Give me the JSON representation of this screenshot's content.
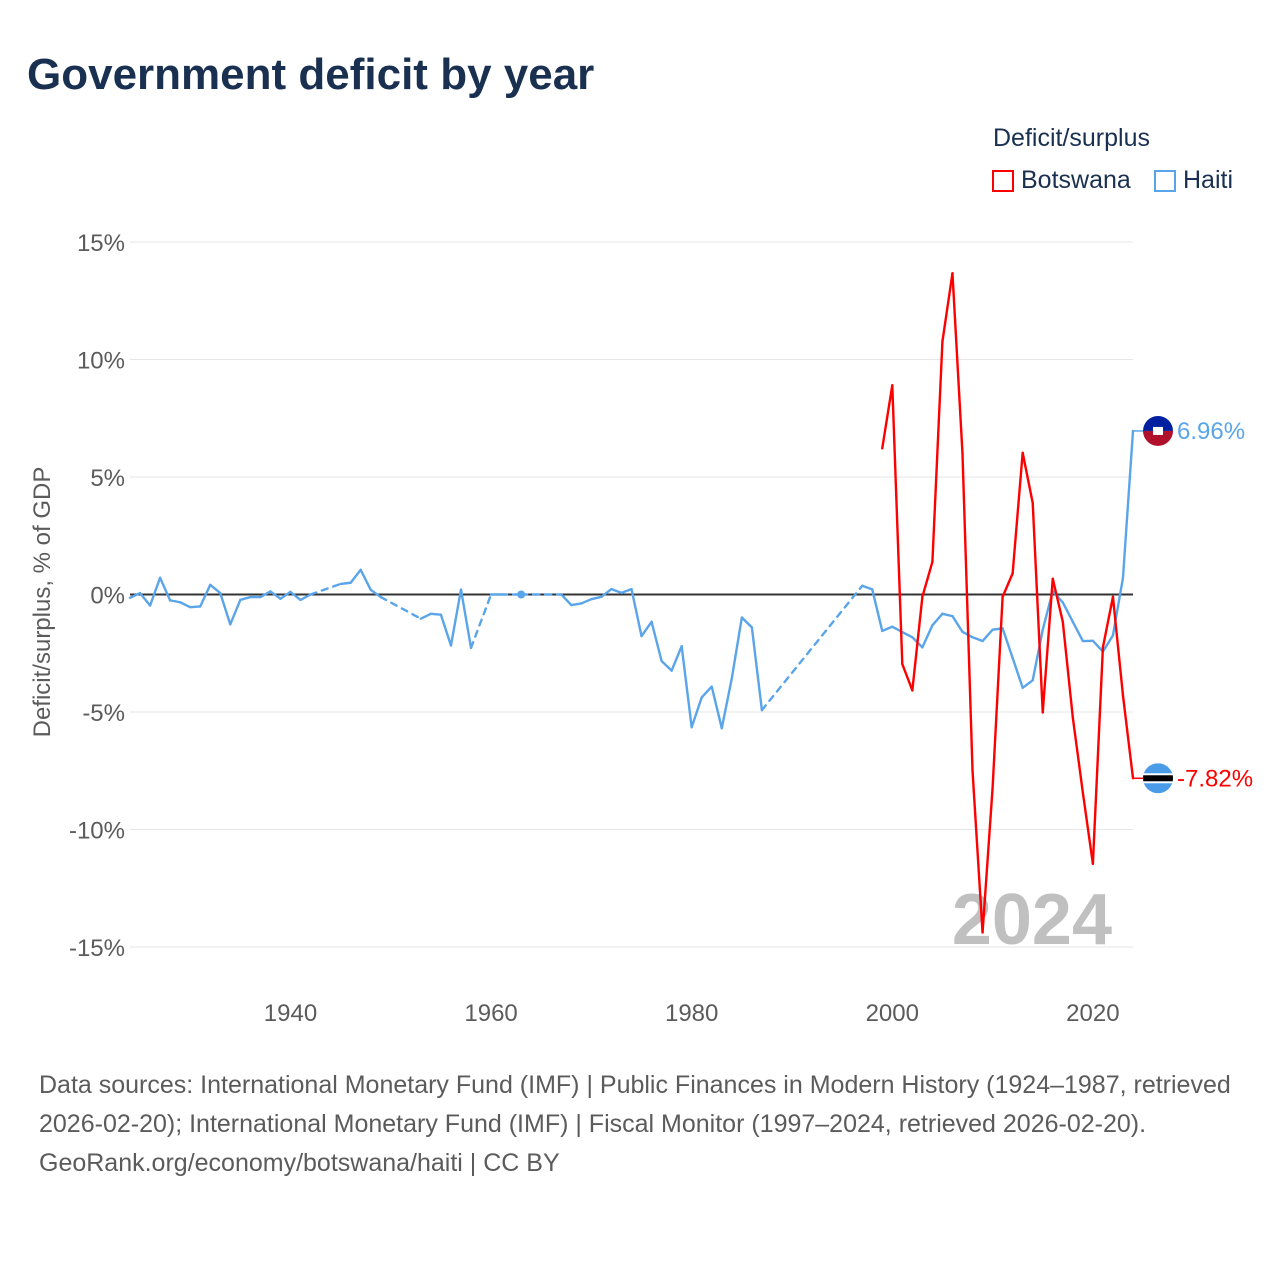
{
  "title": "Government deficit by year",
  "legend": {
    "title": "Deficit/surplus",
    "items": [
      {
        "label": "Botswana",
        "color": "#ff0000"
      },
      {
        "label": "Haiti",
        "color": "#5aa5ea"
      }
    ]
  },
  "chart_data": {
    "type": "line",
    "title": "Government deficit by year",
    "ylabel": "Deficit/surplus, % of GDP",
    "xlabel": "",
    "xlim": [
      1924,
      2024
    ],
    "ylim": [
      -15,
      15
    ],
    "yticks": [
      15,
      10,
      5,
      0,
      -5,
      -10,
      -15
    ],
    "ytick_labels": [
      "15%",
      "10%",
      "5%",
      "0%",
      "-5%",
      "-10%",
      "-15%"
    ],
    "xticks": [
      1940,
      1960,
      1980,
      2000,
      2020
    ],
    "xtick_labels": [
      "1940",
      "1960",
      "1980",
      "2000",
      "2020"
    ],
    "grid": true,
    "year_watermark": "2024",
    "series": [
      {
        "name": "Haiti",
        "color": "#5aa5ea",
        "end_label": "6.96%",
        "points": [
          [
            1924,
            -0.14
          ],
          [
            1925,
            0.06
          ],
          [
            1926,
            -0.47
          ],
          [
            1927,
            0.71
          ],
          [
            1928,
            -0.25
          ],
          [
            1929,
            -0.33
          ],
          [
            1930,
            -0.54
          ],
          [
            1931,
            -0.51
          ],
          [
            1932,
            0.41
          ],
          [
            1933,
            0.06
          ],
          [
            1934,
            -1.27
          ],
          [
            1935,
            -0.23
          ],
          [
            1936,
            -0.11
          ],
          [
            1937,
            -0.11
          ],
          [
            1938,
            0.13
          ],
          [
            1939,
            -0.18
          ],
          [
            1940,
            0.11
          ],
          [
            1941,
            -0.23
          ],
          [
            1942,
            0.0
          ],
          [
            1945,
            0.45
          ],
          [
            1946,
            0.5
          ],
          [
            1947,
            1.05
          ],
          [
            1948,
            0.2
          ],
          [
            1949,
            -0.11
          ],
          [
            1953,
            -1.03
          ],
          [
            1954,
            -0.82
          ],
          [
            1955,
            -0.86
          ],
          [
            1956,
            -2.17
          ],
          [
            1957,
            0.21
          ],
          [
            1958,
            -2.27
          ],
          [
            1960,
            0.0
          ],
          [
            1961,
            0.0
          ],
          [
            1963,
            0.0
          ],
          [
            1967,
            0.0
          ],
          [
            1968,
            -0.45
          ],
          [
            1969,
            -0.38
          ],
          [
            1970,
            -0.2
          ],
          [
            1971,
            -0.1
          ],
          [
            1972,
            0.23
          ],
          [
            1973,
            0.07
          ],
          [
            1974,
            0.23
          ],
          [
            1975,
            -1.77
          ],
          [
            1976,
            -1.16
          ],
          [
            1977,
            -2.83
          ],
          [
            1978,
            -3.24
          ],
          [
            1979,
            -2.2
          ],
          [
            1980,
            -5.65
          ],
          [
            1981,
            -4.38
          ],
          [
            1982,
            -3.92
          ],
          [
            1983,
            -5.69
          ],
          [
            1984,
            -3.57
          ],
          [
            1985,
            -0.98
          ],
          [
            1986,
            -1.4
          ],
          [
            1987,
            -4.92
          ],
          [
            1997,
            0.37
          ],
          [
            1998,
            0.22
          ],
          [
            1999,
            -1.55
          ],
          [
            2000,
            -1.37
          ],
          [
            2001,
            -1.6
          ],
          [
            2002,
            -1.82
          ],
          [
            2003,
            -2.25
          ],
          [
            2004,
            -1.31
          ],
          [
            2005,
            -0.82
          ],
          [
            2006,
            -0.92
          ],
          [
            2007,
            -1.59
          ],
          [
            2008,
            -1.82
          ],
          [
            2009,
            -1.98
          ],
          [
            2010,
            -1.5
          ],
          [
            2011,
            -1.44
          ],
          [
            2012,
            -2.7
          ],
          [
            2013,
            -3.97
          ],
          [
            2014,
            -3.65
          ],
          [
            2015,
            -1.5
          ],
          [
            2016,
            0.15
          ],
          [
            2017,
            -0.34
          ],
          [
            2018,
            -1.16
          ],
          [
            2019,
            -1.98
          ],
          [
            2020,
            -1.97
          ],
          [
            2021,
            -2.43
          ],
          [
            2022,
            -1.74
          ],
          [
            2023,
            0.71
          ],
          [
            2024,
            6.96
          ]
        ]
      },
      {
        "name": "Botswana",
        "color": "#ff0000",
        "end_label": "-7.82%",
        "points": [
          [
            1999,
            6.22
          ],
          [
            2000,
            8.9
          ],
          [
            2001,
            -2.96
          ],
          [
            2002,
            -4.08
          ],
          [
            2003,
            -0.1
          ],
          [
            2004,
            1.39
          ],
          [
            2005,
            10.77
          ],
          [
            2006,
            13.67
          ],
          [
            2007,
            5.99
          ],
          [
            2008,
            -7.5
          ],
          [
            2009,
            -14.38
          ],
          [
            2010,
            -8.24
          ],
          [
            2011,
            -0.1
          ],
          [
            2012,
            0.9
          ],
          [
            2013,
            6.03
          ],
          [
            2014,
            3.9
          ],
          [
            2015,
            -5.02
          ],
          [
            2016,
            0.67
          ],
          [
            2017,
            -1.16
          ],
          [
            2018,
            -5.24
          ],
          [
            2019,
            -8.43
          ],
          [
            2020,
            -11.46
          ],
          [
            2021,
            -2.25
          ],
          [
            2022,
            -0.1
          ],
          [
            2023,
            -4.3
          ],
          [
            2024,
            -7.82
          ]
        ]
      }
    ]
  },
  "footer": {
    "sources": "Data sources: International Monetary Fund (IMF) | Public Finances in Modern History (1924–1987, retrieved 2026-02-20); International Monetary Fund (IMF) | Fiscal Monitor (1997–2024, retrieved 2026-02-20).",
    "credit": "GeoRank.org/economy/botswana/haiti | CC BY"
  }
}
